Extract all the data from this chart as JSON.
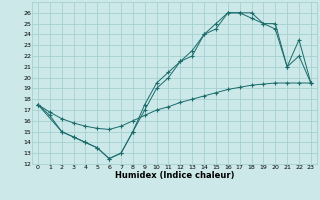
{
  "title": "",
  "xlabel": "Humidex (Indice chaleur)",
  "bg_color": "#cce8e8",
  "grid_color": "#9ecece",
  "line_color": "#1a6b6b",
  "xlim": [
    -0.5,
    23.5
  ],
  "ylim": [
    12,
    27
  ],
  "xticks": [
    0,
    1,
    2,
    3,
    4,
    5,
    6,
    7,
    8,
    9,
    10,
    11,
    12,
    13,
    14,
    15,
    16,
    17,
    18,
    19,
    20,
    21,
    22,
    23
  ],
  "yticks": [
    12,
    13,
    14,
    15,
    16,
    17,
    18,
    19,
    20,
    21,
    22,
    23,
    24,
    25,
    26
  ],
  "line1_x": [
    0,
    1,
    2,
    3,
    4,
    5,
    6,
    7,
    8,
    9,
    10,
    11,
    12,
    13,
    14,
    15,
    16,
    17,
    18,
    19,
    20,
    21,
    22,
    23
  ],
  "line1_y": [
    17.5,
    16.5,
    15.0,
    14.5,
    14.0,
    13.5,
    12.5,
    13.0,
    15.0,
    17.5,
    19.5,
    20.5,
    21.5,
    22.5,
    24.0,
    25.0,
    26.0,
    26.0,
    26.0,
    25.0,
    25.0,
    21.0,
    23.5,
    19.5
  ],
  "line2_x": [
    0,
    2,
    3,
    4,
    5,
    6,
    7,
    8,
    9,
    10,
    11,
    12,
    13,
    14,
    15,
    16,
    17,
    18,
    19,
    20,
    21,
    22,
    23
  ],
  "line2_y": [
    17.5,
    15.0,
    14.5,
    14.0,
    13.5,
    12.5,
    13.0,
    15.0,
    17.0,
    19.0,
    20.0,
    21.5,
    22.0,
    24.0,
    24.5,
    26.0,
    26.0,
    25.5,
    25.0,
    24.5,
    21.0,
    22.0,
    19.5
  ],
  "line3_x": [
    0,
    1,
    2,
    3,
    4,
    5,
    6,
    7,
    8,
    9,
    10,
    11,
    12,
    13,
    14,
    15,
    16,
    17,
    18,
    19,
    20,
    21,
    22,
    23
  ],
  "line3_y": [
    17.5,
    16.8,
    16.2,
    15.8,
    15.5,
    15.3,
    15.2,
    15.5,
    16.0,
    16.5,
    17.0,
    17.3,
    17.7,
    18.0,
    18.3,
    18.6,
    18.9,
    19.1,
    19.3,
    19.4,
    19.5,
    19.5,
    19.5,
    19.5
  ]
}
